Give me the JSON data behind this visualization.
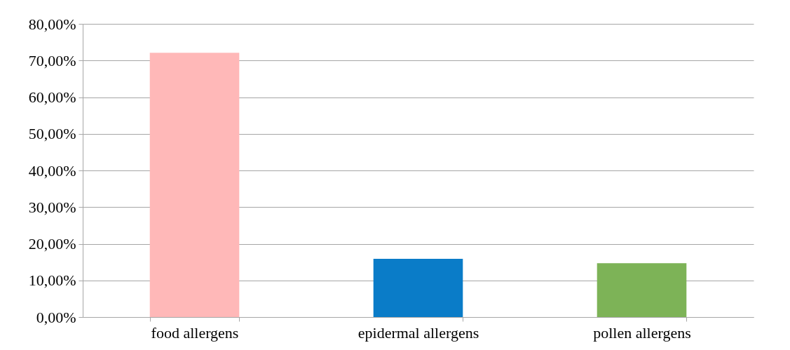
{
  "chart_data": {
    "type": "bar",
    "categories": [
      "food allergens",
      "epidermal allergens",
      "pollen allergens"
    ],
    "values": [
      72.1,
      15.9,
      14.7
    ],
    "colors": [
      "#ffb8b8",
      "#0a7cc8",
      "#7db357"
    ],
    "ylim": [
      0,
      80
    ],
    "yticks": [
      {
        "value": 0,
        "label": "0,00%"
      },
      {
        "value": 10,
        "label": "10,00%"
      },
      {
        "value": 20,
        "label": "20,00%"
      },
      {
        "value": 30,
        "label": "30,00%"
      },
      {
        "value": 40,
        "label": "40,00%"
      },
      {
        "value": 50,
        "label": "50,00%"
      },
      {
        "value": 60,
        "label": "60,00%"
      },
      {
        "value": 70,
        "label": "70,00%"
      },
      {
        "value": 80,
        "label": "80,00%"
      }
    ],
    "grid": "y"
  }
}
